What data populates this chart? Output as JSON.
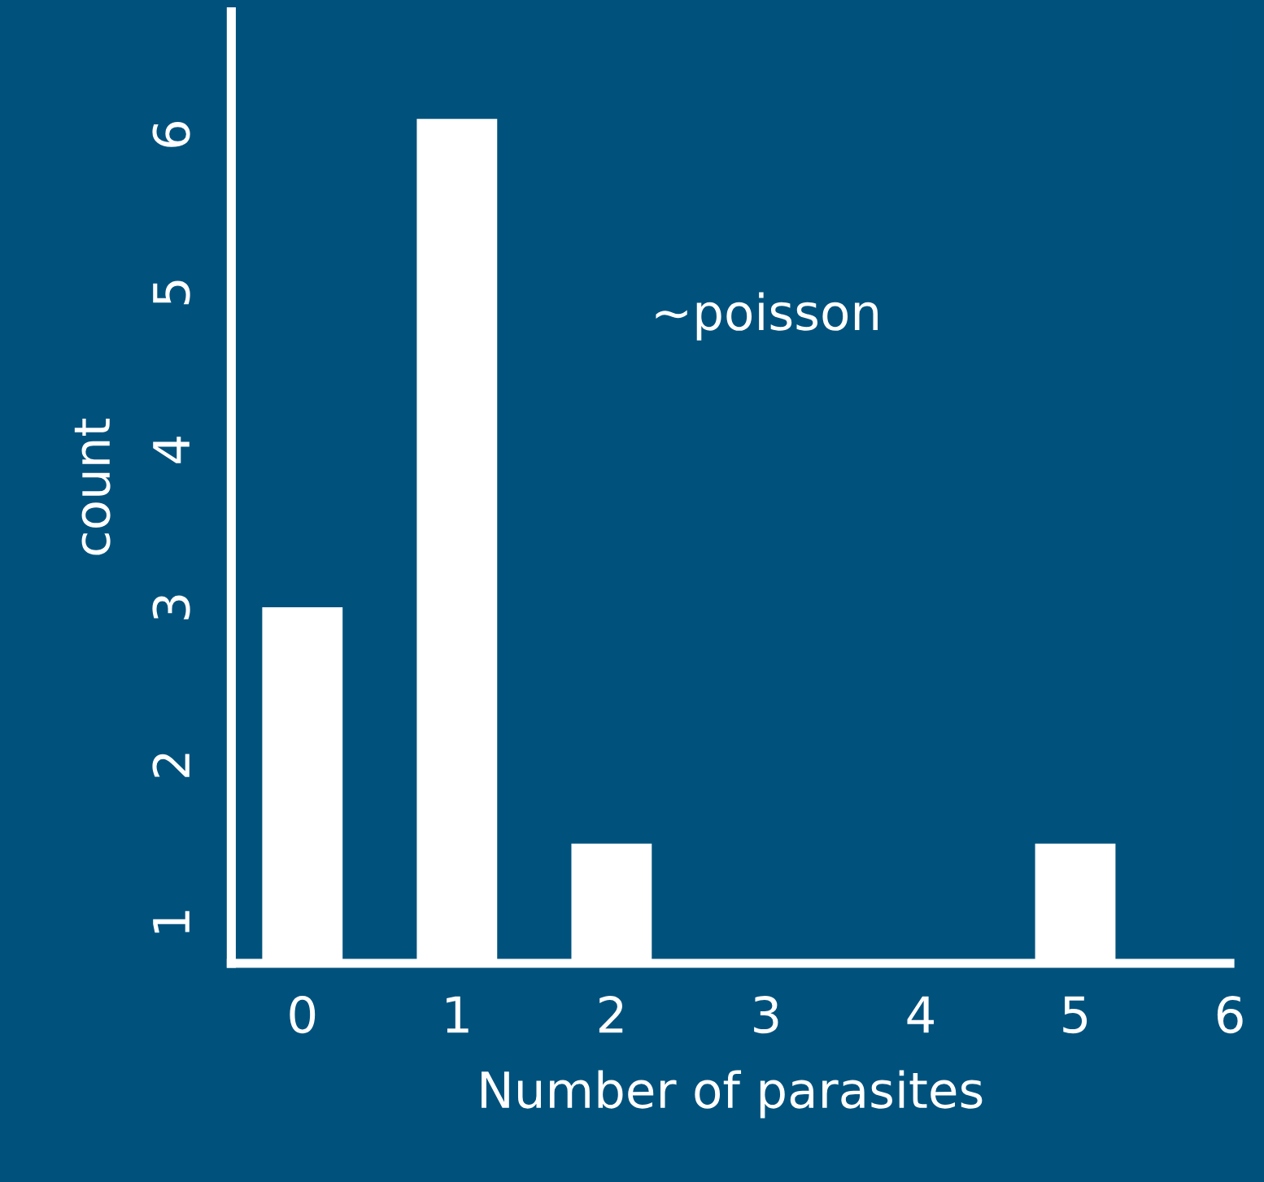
{
  "chart_data": {
    "type": "bar",
    "xlabel": "Number of parasites",
    "ylabel": "count",
    "x": [
      0,
      1,
      2,
      5
    ],
    "values": [
      3,
      6.1,
      1.5,
      1.5
    ],
    "color": "#ffffff",
    "xlim": [
      -0.46,
      6.0
    ],
    "xticks": [
      0,
      1,
      2,
      3,
      4,
      5,
      6
    ],
    "ylim": [
      0.74,
      6.78
    ],
    "yticks": [
      1,
      2,
      3,
      4,
      5,
      6
    ],
    "grid": false,
    "annotations": [
      "~poisson"
    ]
  }
}
